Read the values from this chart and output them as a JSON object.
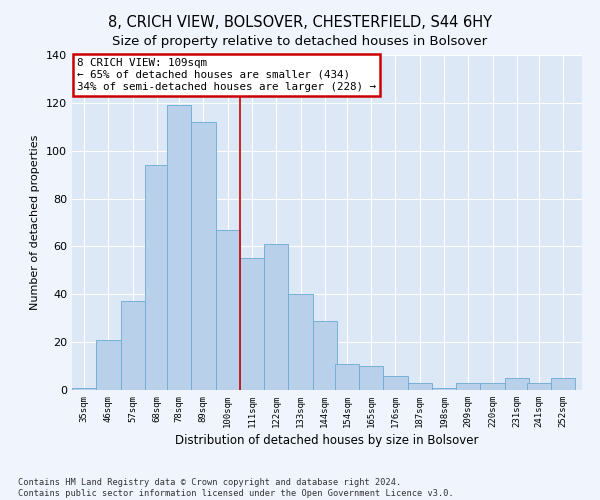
{
  "title": "8, CRICH VIEW, BOLSOVER, CHESTERFIELD, S44 6HY",
  "subtitle": "Size of property relative to detached houses in Bolsover",
  "xlabel": "Distribution of detached houses by size in Bolsover",
  "ylabel": "Number of detached properties",
  "bin_starts": [
    35,
    46,
    57,
    68,
    78,
    89,
    100,
    111,
    122,
    133,
    144,
    154,
    165,
    176,
    187,
    198,
    209,
    220,
    231,
    241,
    252
  ],
  "bin_heights": [
    1,
    21,
    37,
    94,
    119,
    112,
    67,
    55,
    61,
    40,
    29,
    11,
    10,
    6,
    3,
    1,
    3,
    3,
    5,
    3,
    5
  ],
  "bin_labels": [
    "35sqm",
    "46sqm",
    "57sqm",
    "68sqm",
    "78sqm",
    "89sqm",
    "100sqm",
    "111sqm",
    "122sqm",
    "133sqm",
    "144sqm",
    "154sqm",
    "165sqm",
    "176sqm",
    "187sqm",
    "198sqm",
    "209sqm",
    "220sqm",
    "231sqm",
    "241sqm",
    "252sqm"
  ],
  "bar_color": "#b8d0ea",
  "bar_edge_color": "#6aaad4",
  "bg_color": "#dce8f5",
  "fig_bg_color": "#f0f4fc",
  "grid_color": "#ffffff",
  "vline_color": "#cc0000",
  "vline_x": 111,
  "annotation_text": "8 CRICH VIEW: 109sqm\n← 65% of detached houses are smaller (434)\n34% of semi-detached houses are larger (228) →",
  "annotation_box_color": "#ffffff",
  "annotation_box_edge": "#cc0000",
  "ylim": [
    0,
    140
  ],
  "yticks": [
    0,
    20,
    40,
    60,
    80,
    100,
    120,
    140
  ],
  "title_fontsize": 10.5,
  "subtitle_fontsize": 9.5,
  "footnote": "Contains HM Land Registry data © Crown copyright and database right 2024.\nContains public sector information licensed under the Open Government Licence v3.0."
}
